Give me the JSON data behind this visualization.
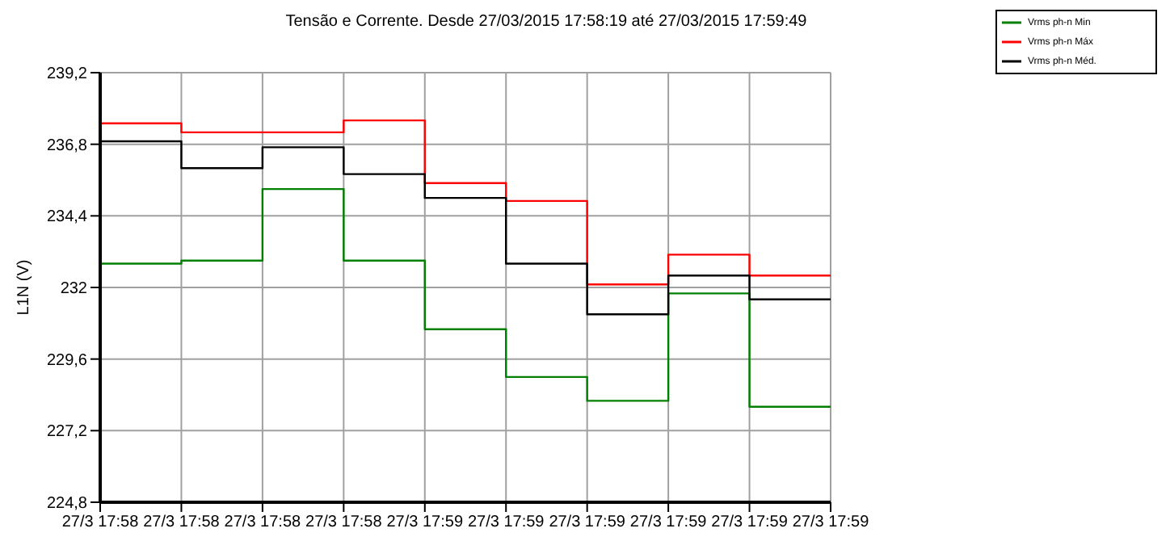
{
  "chart_data": {
    "type": "step",
    "title": "Tensão e Corrente. Desde 27/03/2015 17:58:19 até 27/03/2015 17:59:49",
    "ylabel": "L1N (V)",
    "categories": [
      "27/3 17:58",
      "27/3 17:58",
      "27/3 17:58",
      "27/3 17:58",
      "27/3 17:59",
      "27/3 17:59",
      "27/3 17:59",
      "27/3 17:59",
      "27/3 17:59",
      "27/3 17:59"
    ],
    "series": [
      {
        "name": "Vrms ph-n Min",
        "color": "#008000",
        "values": [
          232.8,
          232.9,
          235.3,
          232.9,
          230.6,
          229.0,
          228.2,
          231.8,
          228.0,
          228.0
        ]
      },
      {
        "name": "Vrms ph-n Máx",
        "color": "#ff0000",
        "values": [
          237.5,
          237.2,
          237.2,
          237.6,
          235.5,
          234.9,
          232.1,
          233.1,
          232.4,
          232.4
        ]
      },
      {
        "name": "Vrms ph-n Méd.",
        "color": "#000000",
        "values": [
          236.9,
          236.0,
          236.7,
          235.8,
          235.0,
          232.8,
          231.1,
          232.4,
          231.6,
          231.6
        ]
      }
    ],
    "ylim": [
      224.8,
      239.2
    ],
    "yticks": [
      {
        "value": 224.8,
        "label": "224,8"
      },
      {
        "value": 227.2,
        "label": "227,2"
      },
      {
        "value": 229.6,
        "label": "229,6"
      },
      {
        "value": 232,
        "label": "232"
      },
      {
        "value": 234.4,
        "label": "234,4"
      },
      {
        "value": 236.8,
        "label": "236,8"
      },
      {
        "value": 239.2,
        "label": "239,2"
      }
    ],
    "grid": true,
    "legend": "top right",
    "marker": "none",
    "line_style": "solid"
  }
}
